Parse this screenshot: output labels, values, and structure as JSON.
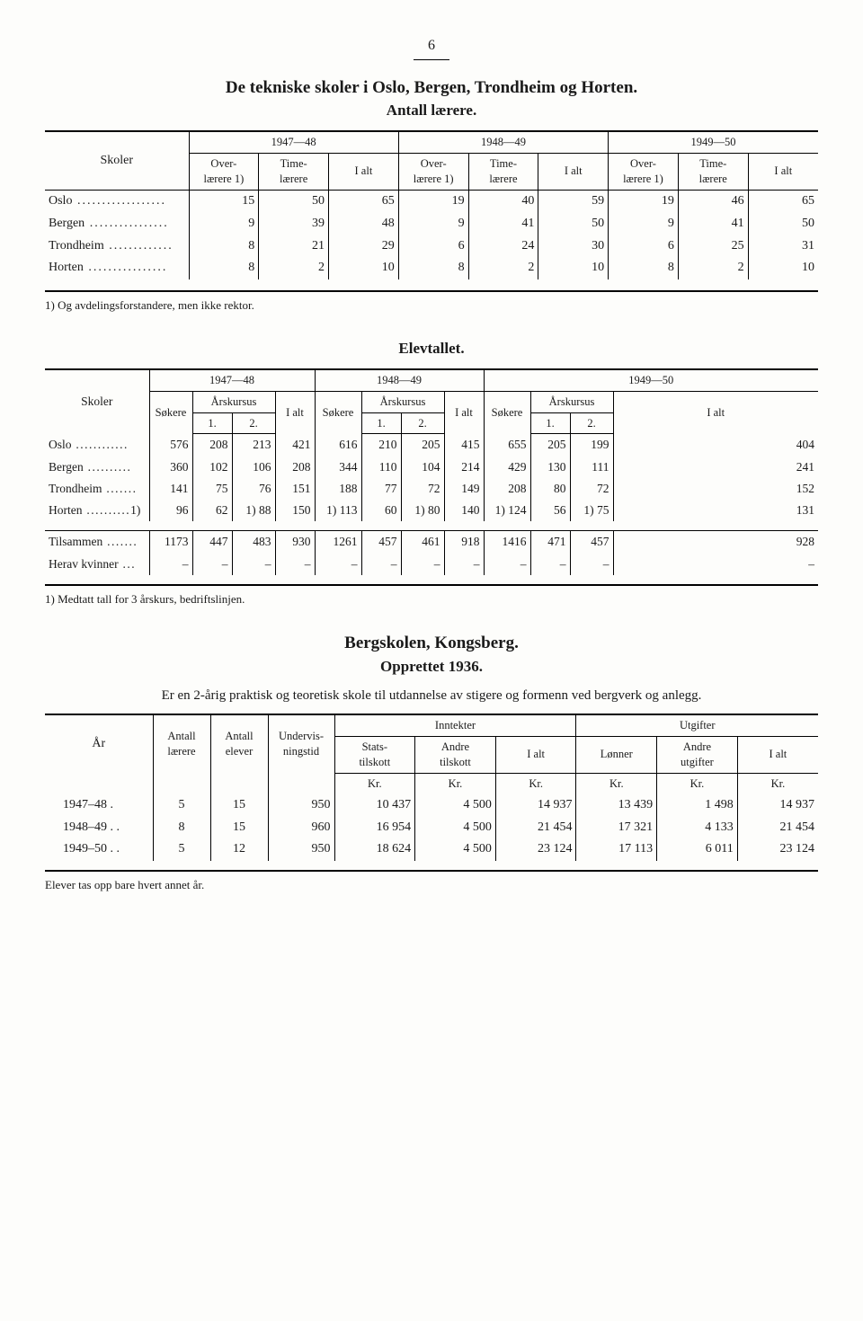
{
  "pageNumber": "6",
  "table1": {
    "heading": "De tekniske skoler i Oslo, Bergen, Trondheim og Horten.",
    "subheading": "Antall lærere.",
    "colLabel": "Skoler",
    "yearGroups": [
      "1947—48",
      "1948—49",
      "1949—50"
    ],
    "subcols": {
      "over": "Over-\nlærere 1)",
      "time": "Time-\nlærere",
      "ialt": "I alt"
    },
    "rows": [
      {
        "name": "Oslo",
        "y1": [
          "15",
          "50",
          "65"
        ],
        "y2": [
          "19",
          "40",
          "59"
        ],
        "y3": [
          "19",
          "46",
          "65"
        ]
      },
      {
        "name": "Bergen",
        "y1": [
          "9",
          "39",
          "48"
        ],
        "y2": [
          "9",
          "41",
          "50"
        ],
        "y3": [
          "9",
          "41",
          "50"
        ]
      },
      {
        "name": "Trondheim",
        "y1": [
          "8",
          "21",
          "29"
        ],
        "y2": [
          "6",
          "24",
          "30"
        ],
        "y3": [
          "6",
          "25",
          "31"
        ]
      },
      {
        "name": "Horten",
        "y1": [
          "8",
          "2",
          "10"
        ],
        "y2": [
          "8",
          "2",
          "10"
        ],
        "y3": [
          "8",
          "2",
          "10"
        ]
      }
    ],
    "footnote": "1) Og avdelingsforstandere, men ikke rektor."
  },
  "table2": {
    "heading": "Elevtallet.",
    "colLabel": "Skoler",
    "yearGroups": [
      "1947—48",
      "1948—49",
      "1949—50"
    ],
    "subcols": {
      "sokere": "Søkere",
      "ars": "Årskursus",
      "a1": "1.",
      "a2": "2.",
      "ialt": "I alt"
    },
    "rows": [
      {
        "name": "Oslo",
        "y1": [
          "576",
          "208",
          "213",
          "421"
        ],
        "y2": [
          "616",
          "210",
          "205",
          "415"
        ],
        "y3": [
          "655",
          "205",
          "199",
          "404"
        ]
      },
      {
        "name": "Bergen",
        "y1": [
          "360",
          "102",
          "106",
          "208"
        ],
        "y2": [
          "344",
          "110",
          "104",
          "214"
        ],
        "y3": [
          "429",
          "130",
          "111",
          "241"
        ]
      },
      {
        "name": "Trondheim",
        "y1": [
          "141",
          "75",
          "76",
          "151"
        ],
        "y2": [
          "188",
          "77",
          "72",
          "149"
        ],
        "y3": [
          "208",
          "80",
          "72",
          "152"
        ]
      },
      {
        "name": "Horten",
        "pre": "1)",
        "y1": [
          "96",
          "62",
          "1) 88",
          "150"
        ],
        "y2": [
          "1) 113",
          "60",
          "1) 80",
          "140"
        ],
        "y3": [
          "1) 124",
          "56",
          "1) 75",
          "131"
        ]
      }
    ],
    "totals": [
      {
        "name": "Tilsammen",
        "y1": [
          "1173",
          "447",
          "483",
          "930"
        ],
        "y2": [
          "1261",
          "457",
          "461",
          "918"
        ],
        "y3": [
          "1416",
          "471",
          "457",
          "928"
        ]
      },
      {
        "name": "Herav kvinner",
        "y1": [
          "–",
          "–",
          "–",
          "–"
        ],
        "y2": [
          "–",
          "–",
          "–",
          "–"
        ],
        "y3": [
          "–",
          "–",
          "–",
          "–"
        ]
      }
    ],
    "footnote": "1) Medtatt tall for 3 årskurs, bedriftslinjen."
  },
  "table3": {
    "heading": "Bergskolen, Kongsberg.",
    "subheading": "Opprettet 1936.",
    "intro": "Er en 2-årig praktisk og teoretisk skole til utdannelse av stigere og formenn ved bergverk og anlegg.",
    "headers": {
      "ar": "År",
      "antallLaerere": "Antall\nlærere",
      "antallElever": "Antall\nelever",
      "undervis": "Undervis-\nningstid",
      "inntekter": "Inntekter",
      "utgifter": "Utgifter",
      "stats": "Stats-\ntilskott",
      "andreTil": "Andre\ntilskott",
      "ialt": "I alt",
      "lonner": "Lønner",
      "andreUtg": "Andre\nutgifter",
      "kr": "Kr."
    },
    "rows": [
      {
        "ar": "1947–48  .",
        "al": "5",
        "ae": "15",
        "u": "950",
        "st": "10 437",
        "at": "4 500",
        "ii": "14 937",
        "lo": "13 439",
        "au": "1 498",
        "ui": "14 937"
      },
      {
        "ar": "1948–49  . .",
        "al": "8",
        "ae": "15",
        "u": "960",
        "st": "16 954",
        "at": "4 500",
        "ii": "21 454",
        "lo": "17 321",
        "au": "4 133",
        "ui": "21 454"
      },
      {
        "ar": "1949–50  . .",
        "al": "5",
        "ae": "12",
        "u": "950",
        "st": "18 624",
        "at": "4 500",
        "ii": "23 124",
        "lo": "17 113",
        "au": "6 011",
        "ui": "23 124"
      }
    ],
    "footnote": "Elever tas opp bare hvert annet år."
  }
}
